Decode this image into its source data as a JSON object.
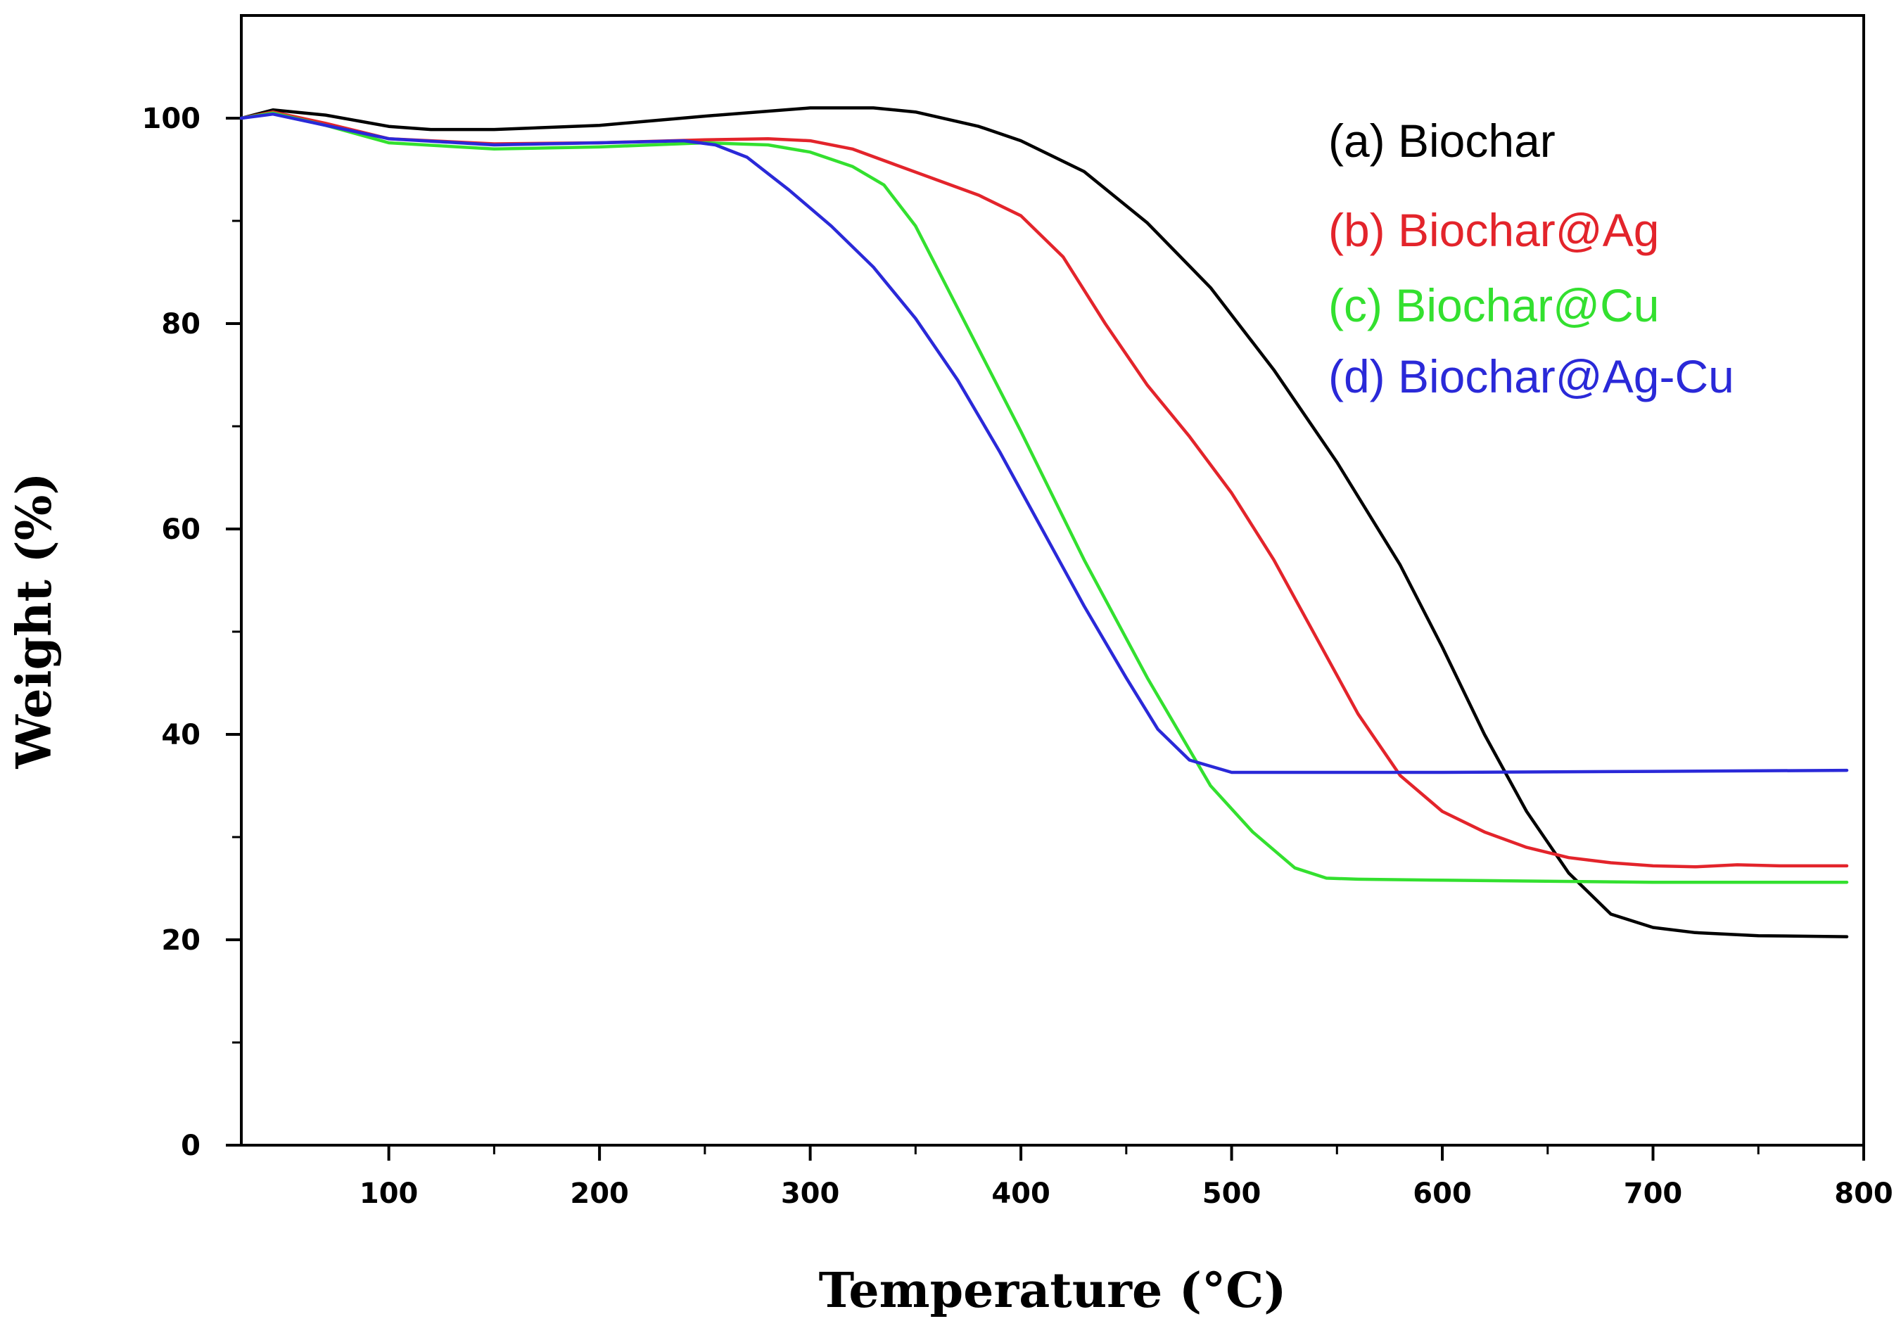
{
  "chart_data": {
    "type": "line",
    "title": "",
    "xlabel": "Temperature (°C)",
    "ylabel": "Weight (%)",
    "xlim": [
      30,
      800
    ],
    "ylim": [
      0,
      110
    ],
    "x_major_ticks": [
      100,
      200,
      300,
      400,
      500,
      600,
      700,
      800
    ],
    "x_minor_ticks": [
      150,
      250,
      350,
      450,
      550,
      650,
      750
    ],
    "y_major_ticks": [
      0,
      20,
      40,
      60,
      80,
      100
    ],
    "y_minor_ticks": [
      10,
      30,
      50,
      70,
      90
    ],
    "grid": false,
    "legend_position": "top-right",
    "series": [
      {
        "name": "(a) Biochar",
        "color": "#000000",
        "x": [
          30,
          45,
          70,
          100,
          120,
          150,
          200,
          250,
          300,
          330,
          350,
          380,
          400,
          430,
          460,
          490,
          520,
          550,
          580,
          600,
          620,
          640,
          660,
          680,
          700,
          720,
          750,
          792
        ],
        "y": [
          100,
          100.8,
          100.3,
          99.2,
          98.9,
          98.9,
          99.3,
          100.2,
          101,
          101,
          100.6,
          99.2,
          97.8,
          94.8,
          89.8,
          83.5,
          75.5,
          66.5,
          56.5,
          48.5,
          40,
          32.5,
          26.5,
          22.5,
          21.2,
          20.7,
          20.4,
          20.3
        ]
      },
      {
        "name": "(b) Biochar@Ag",
        "color": "#e3242b",
        "x": [
          30,
          45,
          70,
          100,
          150,
          200,
          250,
          280,
          300,
          320,
          340,
          360,
          380,
          400,
          420,
          440,
          460,
          480,
          500,
          520,
          540,
          560,
          580,
          600,
          620,
          640,
          660,
          680,
          700,
          720,
          740,
          760,
          792
        ],
        "y": [
          100,
          100.6,
          99.5,
          98,
          97.5,
          97.6,
          97.9,
          98,
          97.8,
          97,
          95.5,
          94,
          92.5,
          90.5,
          86.5,
          80,
          74,
          69,
          63.5,
          57,
          49.5,
          42,
          36,
          32.5,
          30.5,
          29,
          28,
          27.5,
          27.2,
          27.1,
          27.3,
          27.2,
          27.2
        ]
      },
      {
        "name": "(c) Biochar@Cu",
        "color": "#33e02f",
        "x": [
          30,
          45,
          70,
          100,
          150,
          200,
          250,
          280,
          300,
          320,
          335,
          350,
          370,
          400,
          430,
          460,
          490,
          510,
          530,
          545,
          560,
          600,
          700,
          792
        ],
        "y": [
          100,
          100.5,
          99.3,
          97.6,
          97,
          97.2,
          97.6,
          97.4,
          96.7,
          95.3,
          93.5,
          89.5,
          81.5,
          69.5,
          57,
          45.5,
          35,
          30.5,
          27,
          26,
          25.9,
          25.8,
          25.6,
          25.6
        ]
      },
      {
        "name": "(d) Biochar@Ag-Cu",
        "color": "#2a29d8",
        "x": [
          30,
          45,
          70,
          100,
          150,
          200,
          240,
          255,
          270,
          290,
          310,
          330,
          350,
          370,
          390,
          410,
          430,
          450,
          465,
          480,
          500,
          600,
          700,
          792
        ],
        "y": [
          100,
          100.4,
          99.3,
          98,
          97.4,
          97.6,
          97.8,
          97.4,
          96.2,
          93,
          89.5,
          85.5,
          80.5,
          74.5,
          67.5,
          60,
          52.5,
          45.5,
          40.5,
          37.5,
          36.3,
          36.3,
          36.4,
          36.5
        ]
      }
    ]
  }
}
